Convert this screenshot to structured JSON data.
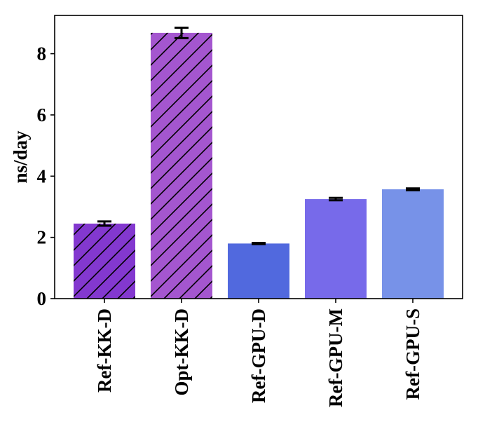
{
  "chart_data": {
    "type": "bar",
    "title": "",
    "xlabel": "",
    "ylabel": "ns/day",
    "ylim": [
      0,
      9.25
    ],
    "yticks": [
      0,
      2,
      4,
      6,
      8
    ],
    "grid": false,
    "categories": [
      "Ref-KK-D",
      "Opt-KK-D",
      "Ref-GPU-D",
      "Ref-GPU-M",
      "Ref-GPU-S"
    ],
    "values": [
      2.45,
      8.68,
      1.8,
      3.25,
      3.57
    ],
    "errors": [
      0.07,
      0.17,
      0.02,
      0.04,
      0.03
    ],
    "colors": [
      "#8338cf",
      "#a456cf",
      "#5169de",
      "#776aea",
      "#7792e8"
    ],
    "hatched": [
      true,
      true,
      false,
      false,
      false
    ]
  }
}
